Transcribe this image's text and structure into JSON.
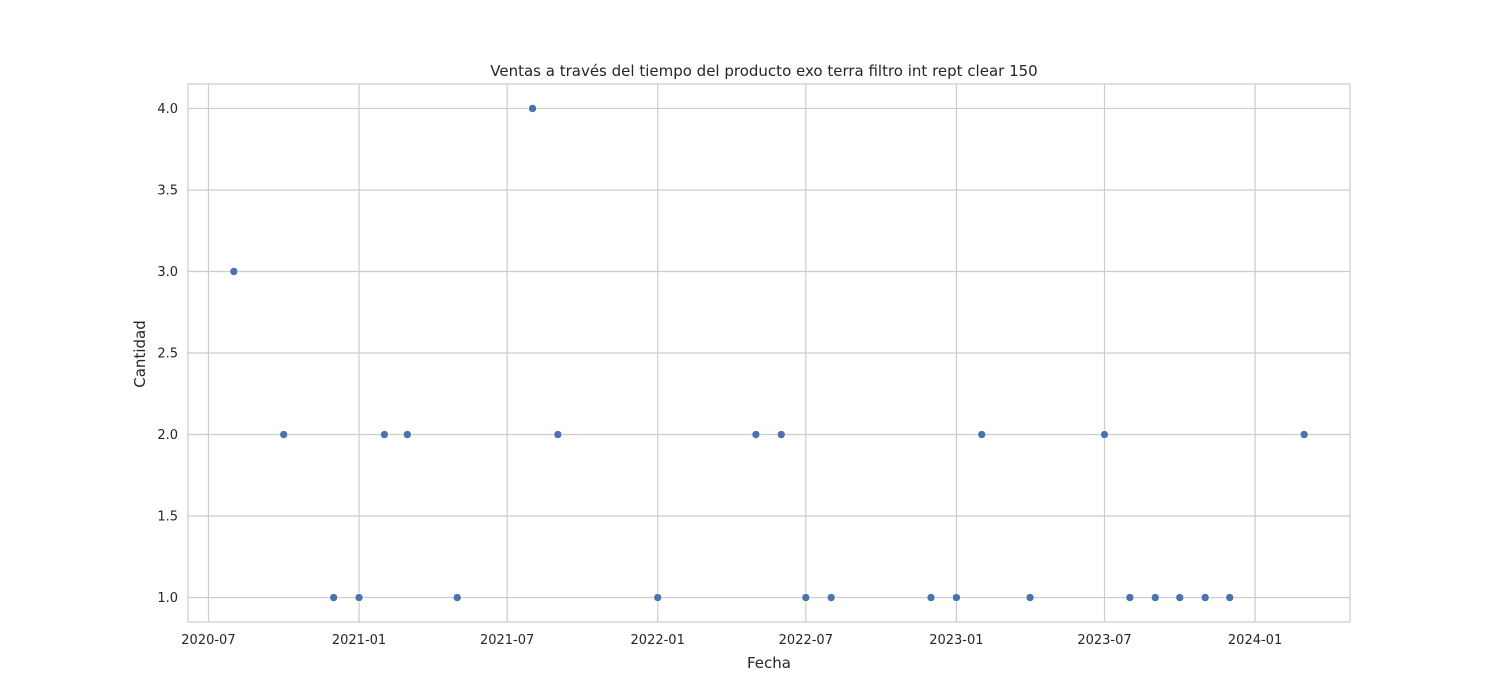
{
  "chart_data": {
    "type": "scatter",
    "title": "Ventas a través del tiempo del producto exo terra filtro int rept clear 150",
    "xlabel": "Fecha",
    "ylabel": "Cantidad",
    "x_axis_type": "date",
    "xlim": [
      "2020-06-06",
      "2024-04-26"
    ],
    "ylim": [
      0.85,
      4.15
    ],
    "x_ticks": [
      "2020-07-01",
      "2021-01-01",
      "2021-07-01",
      "2022-01-01",
      "2022-07-01",
      "2023-01-01",
      "2023-07-01",
      "2024-01-01"
    ],
    "x_tick_labels": [
      "2020-07",
      "2021-01",
      "2021-07",
      "2022-01",
      "2022-07",
      "2023-01",
      "2023-07",
      "2024-01"
    ],
    "y_ticks": [
      1.0,
      1.5,
      2.0,
      2.5,
      3.0,
      3.5,
      4.0
    ],
    "y_tick_labels": [
      "1.0",
      "1.5",
      "2.0",
      "2.5",
      "3.0",
      "3.5",
      "4.0"
    ],
    "grid": true,
    "marker_color": "#4c72b0",
    "points": [
      {
        "x": "2020-08-01",
        "y": 3
      },
      {
        "x": "2020-10-01",
        "y": 2
      },
      {
        "x": "2020-12-01",
        "y": 1
      },
      {
        "x": "2021-01-01",
        "y": 1
      },
      {
        "x": "2021-02-01",
        "y": 2
      },
      {
        "x": "2021-03-01",
        "y": 2
      },
      {
        "x": "2021-05-01",
        "y": 1
      },
      {
        "x": "2021-08-01",
        "y": 4
      },
      {
        "x": "2021-09-01",
        "y": 2
      },
      {
        "x": "2022-01-01",
        "y": 1
      },
      {
        "x": "2022-05-01",
        "y": 2
      },
      {
        "x": "2022-06-01",
        "y": 2
      },
      {
        "x": "2022-07-01",
        "y": 1
      },
      {
        "x": "2022-08-01",
        "y": 1
      },
      {
        "x": "2022-12-01",
        "y": 1
      },
      {
        "x": "2023-01-01",
        "y": 1
      },
      {
        "x": "2023-02-01",
        "y": 2
      },
      {
        "x": "2023-04-01",
        "y": 1
      },
      {
        "x": "2023-07-01",
        "y": 2
      },
      {
        "x": "2023-08-01",
        "y": 1
      },
      {
        "x": "2023-09-01",
        "y": 1
      },
      {
        "x": "2023-10-01",
        "y": 1
      },
      {
        "x": "2023-11-01",
        "y": 1
      },
      {
        "x": "2023-12-01",
        "y": 1
      },
      {
        "x": "2024-03-01",
        "y": 2
      }
    ]
  }
}
